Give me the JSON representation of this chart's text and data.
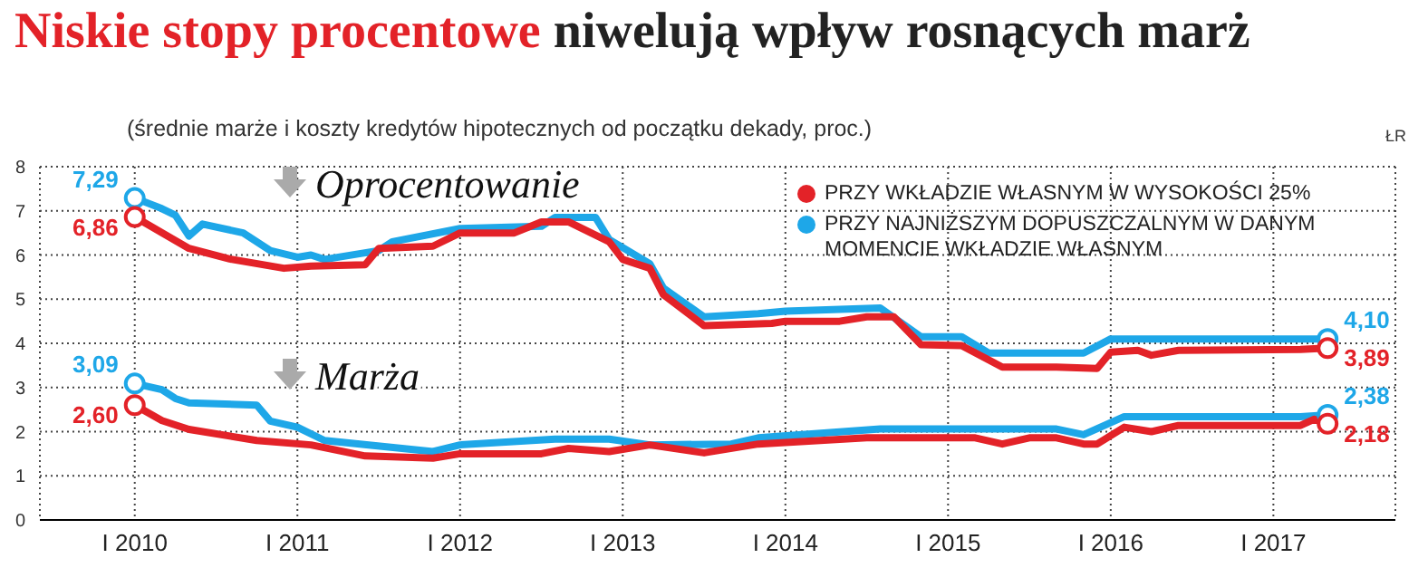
{
  "chart_data": {
    "type": "line",
    "title": "Niskie stopy procentowe niwelują wpływ rosnących marż",
    "subtitle": "(średnie marże i koszty kredytów hipotecznych od początku dekady, proc.)",
    "xlim": [
      "2009-06",
      "2017-10"
    ],
    "xticks": [
      {
        "value": "2010-01",
        "label": "I 2010"
      },
      {
        "value": "2011-01",
        "label": "I 2011"
      },
      {
        "value": "2012-01",
        "label": "I 2012"
      },
      {
        "value": "2013-01",
        "label": "I 2013"
      },
      {
        "value": "2014-01",
        "label": "I 2014"
      },
      {
        "value": "2015-01",
        "label": "I 2015"
      },
      {
        "value": "2016-01",
        "label": "I 2016"
      },
      {
        "value": "2017-01",
        "label": "I 2017"
      }
    ],
    "ylim": [
      0,
      8
    ],
    "yticks": [
      0,
      1,
      2,
      3,
      4,
      5,
      6,
      7,
      8
    ],
    "grid": true,
    "legend": "top right",
    "line_style": "solid",
    "series": [
      {
        "name": "PRZY WKŁADZIE WŁASNYM W WYSOKOŚCI 25%",
        "color": "#e32228",
        "x": [
          "2010-01",
          "2010-05",
          "2010-08",
          "2010-12",
          "2011-02",
          "2011-06",
          "2011-07",
          "2011-11",
          "2012-01",
          "2012-05",
          "2012-07",
          "2012-09",
          "2012-12",
          "2013-01",
          "2013-03",
          "2013-04",
          "2013-07",
          "2013-12",
          "2014-01",
          "2014-05",
          "2014-07",
          "2014-09",
          "2014-11",
          "2015-02",
          "2015-05",
          "2015-09",
          "2015-12",
          "2016-01",
          "2016-03",
          "2016-04",
          "2016-06",
          "2017-03",
          "2017-05"
        ],
        "values": [
          6.86,
          6.15,
          5.91,
          5.7,
          5.75,
          5.78,
          6.15,
          6.2,
          6.5,
          6.5,
          6.75,
          6.75,
          6.3,
          5.9,
          5.7,
          5.1,
          4.4,
          4.45,
          4.5,
          4.5,
          4.6,
          4.6,
          3.97,
          3.95,
          3.46,
          3.46,
          3.43,
          3.8,
          3.84,
          3.73,
          3.84,
          3.86,
          3.89
        ],
        "value_labels": [
          "6,86",
          null,
          null,
          null,
          null,
          null,
          null,
          null,
          null,
          null,
          null,
          null,
          null,
          null,
          null,
          null,
          null,
          null,
          null,
          null,
          null,
          null,
          null,
          null,
          null,
          null,
          null,
          null,
          null,
          null,
          null,
          null,
          "3,89"
        ]
      },
      {
        "name": "PRZY NAJNIŻSZYM DOPUSZCZALNYM W DANYM MOMENCIE WKŁADZIE WŁASNYM",
        "color": "#1ea7e8",
        "x": [
          "2010-01",
          "2010-03",
          "2010-04",
          "2010-05",
          "2010-06",
          "2010-09",
          "2010-11",
          "2011-01",
          "2011-02",
          "2011-03",
          "2011-07",
          "2011-08",
          "2012-01",
          "2012-07",
          "2012-08",
          "2012-11",
          "2012-12",
          "2013-03",
          "2013-04",
          "2013-07",
          "2013-11",
          "2014-01",
          "2014-08",
          "2014-11",
          "2015-02",
          "2015-04",
          "2015-11",
          "2016-01",
          "2017-05"
        ],
        "values": [
          7.29,
          7.05,
          6.9,
          6.43,
          6.7,
          6.5,
          6.1,
          5.95,
          6.0,
          5.9,
          6.1,
          6.3,
          6.6,
          6.65,
          6.85,
          6.85,
          6.35,
          5.8,
          5.25,
          4.6,
          4.67,
          4.73,
          4.8,
          4.15,
          4.15,
          3.78,
          3.78,
          4.1,
          4.1
        ],
        "value_labels": [
          "7,29",
          null,
          null,
          null,
          null,
          null,
          null,
          null,
          null,
          null,
          null,
          null,
          null,
          null,
          null,
          null,
          null,
          null,
          null,
          null,
          null,
          null,
          null,
          null,
          null,
          null,
          null,
          null,
          "4,10"
        ]
      },
      {
        "color": "#e32228",
        "x": [
          "2010-01",
          "2010-03",
          "2010-05",
          "2010-10",
          "2011-02",
          "2011-06",
          "2011-11",
          "2012-01",
          "2012-07",
          "2012-09",
          "2012-12",
          "2013-03",
          "2013-07",
          "2013-11",
          "2014-07",
          "2015-03",
          "2015-05",
          "2015-07",
          "2015-09",
          "2015-11",
          "2015-12",
          "2016-02",
          "2016-04",
          "2016-06",
          "2017-03",
          "2017-04",
          "2017-05"
        ],
        "values": [
          2.6,
          2.25,
          2.05,
          1.8,
          1.7,
          1.45,
          1.4,
          1.5,
          1.5,
          1.62,
          1.55,
          1.7,
          1.52,
          1.72,
          1.86,
          1.86,
          1.72,
          1.86,
          1.86,
          1.72,
          1.72,
          2.1,
          2.0,
          2.14,
          2.14,
          2.28,
          2.18
        ],
        "value_labels": [
          "2,60",
          null,
          null,
          null,
          null,
          null,
          null,
          null,
          null,
          null,
          null,
          null,
          null,
          null,
          null,
          null,
          null,
          null,
          null,
          null,
          null,
          null,
          null,
          null,
          null,
          null,
          "2,18"
        ]
      },
      {
        "color": "#1ea7e8",
        "x": [
          "2010-01",
          "2010-03",
          "2010-04",
          "2010-05",
          "2010-10",
          "2010-11",
          "2011-01",
          "2011-03",
          "2011-11",
          "2012-01",
          "2012-08",
          "2012-12",
          "2013-03",
          "2013-09",
          "2013-11",
          "2014-08",
          "2015-09",
          "2015-11",
          "2016-02",
          "2017-03",
          "2017-05"
        ],
        "values": [
          3.09,
          2.95,
          2.75,
          2.65,
          2.6,
          2.24,
          2.1,
          1.8,
          1.55,
          1.7,
          1.83,
          1.83,
          1.7,
          1.72,
          1.86,
          2.06,
          2.06,
          1.93,
          2.34,
          2.34,
          2.38
        ],
        "value_labels": [
          "3,09",
          null,
          null,
          null,
          null,
          null,
          null,
          null,
          null,
          null,
          null,
          null,
          null,
          null,
          null,
          null,
          null,
          null,
          null,
          null,
          "2,38"
        ]
      }
    ],
    "annotations": [
      "Oprocentowanie",
      "Marża",
      "ŁR"
    ]
  }
}
